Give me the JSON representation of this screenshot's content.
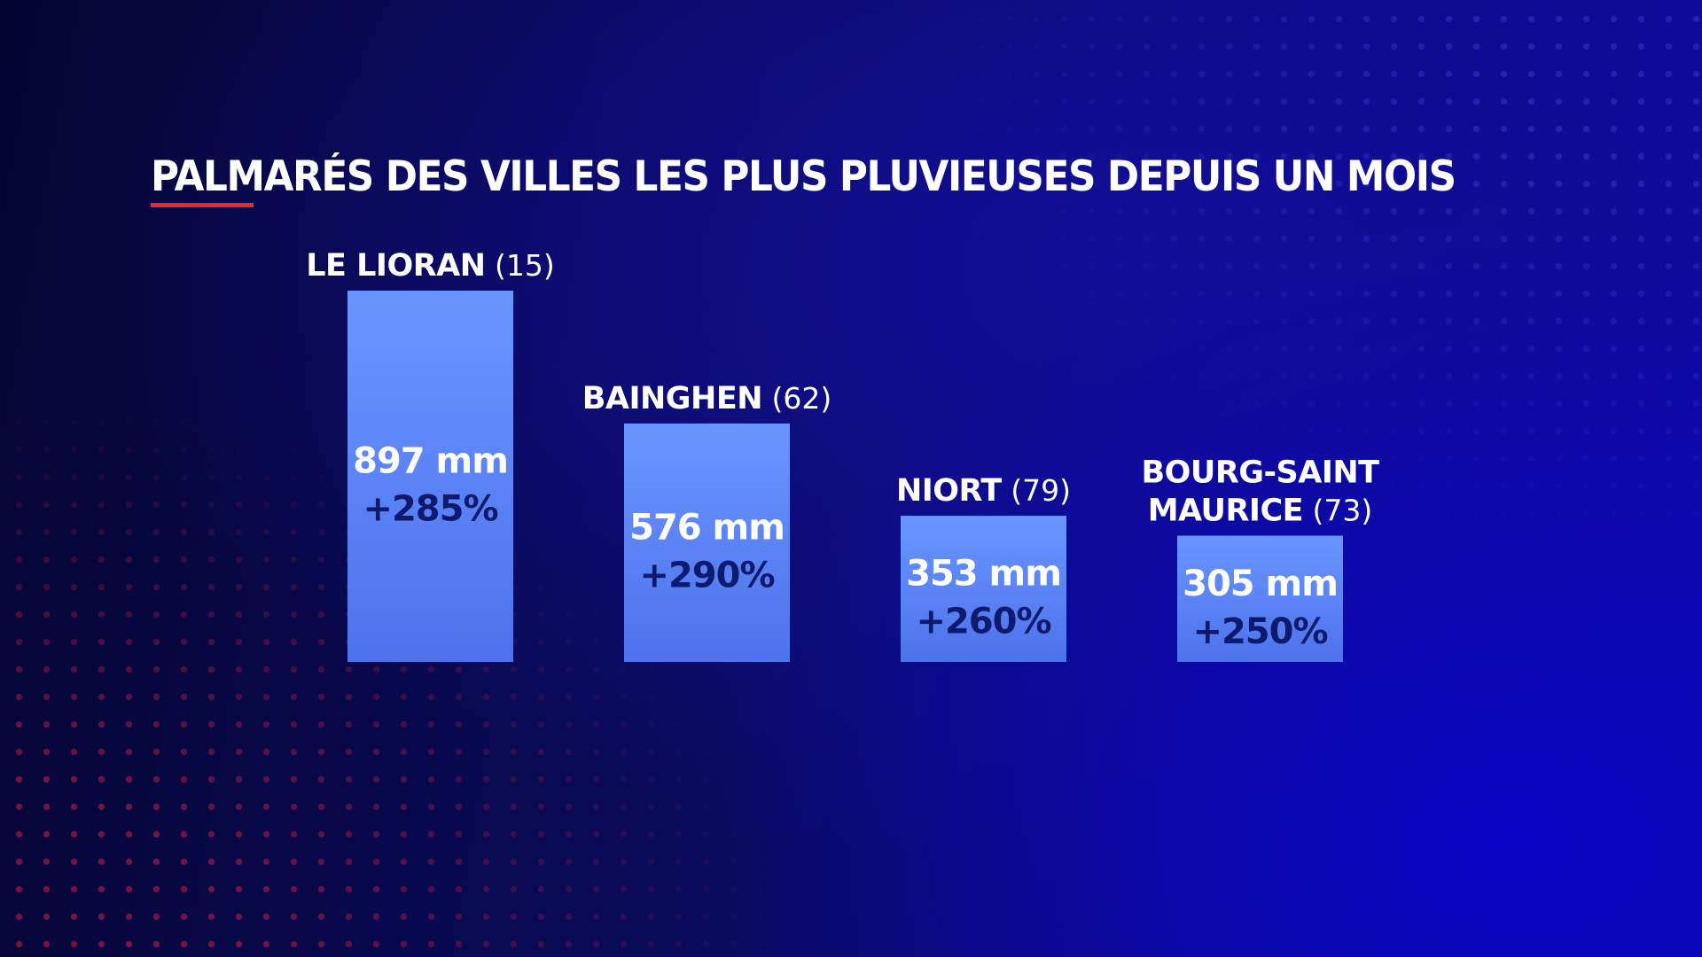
{
  "colors": {
    "bar_top": "#6a95ff",
    "bar_bottom": "#4d72ec",
    "change_text": "#0d1a6e",
    "underline": "#e8282b"
  },
  "chart_data": {
    "type": "bar",
    "title": "PALMARÉS DES VILLES LES PLUS PLUVIEUSES DEPUIS UN MOIS",
    "unit": "mm",
    "ylim": [
      0,
      897
    ],
    "categories": [
      {
        "name_lines": [
          "LE LIORAN"
        ],
        "code": "(15)"
      },
      {
        "name_lines": [
          "BAINGHEN"
        ],
        "code": "(62)"
      },
      {
        "name_lines": [
          "NIORT"
        ],
        "code": "(79)"
      },
      {
        "name_lines": [
          "BOURG-SAINT",
          "MAURICE"
        ],
        "code": "(73)"
      }
    ],
    "values": [
      897,
      576,
      353,
      305
    ],
    "value_labels": [
      "897 mm",
      "576 mm",
      "353 mm",
      "305 mm"
    ],
    "change_labels": [
      "+285%",
      "+290%",
      "+260%",
      "+250%"
    ]
  }
}
